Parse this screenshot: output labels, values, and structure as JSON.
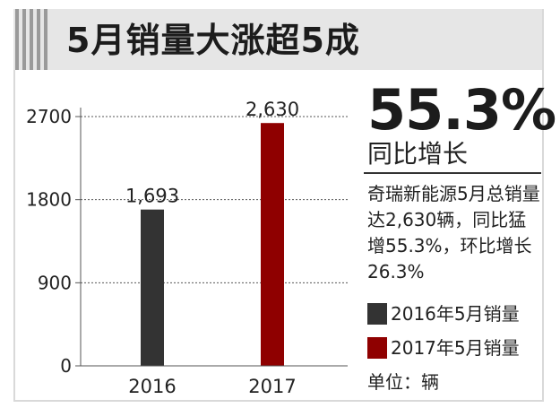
{
  "title": "5月销量大涨超5成",
  "highlight": {
    "value": "55.3%",
    "label": "同比增长"
  },
  "description": "奇瑞新能源5月总销量达2,630辆，同比猛增55.3%，环比增长26.3%",
  "unit": "单位：辆",
  "colors": {
    "2016": "#333333",
    "2017": "#8f0000"
  },
  "chart_data": {
    "type": "bar",
    "categories": [
      "2016",
      "2017"
    ],
    "values": [
      1693,
      2630
    ],
    "value_labels": [
      "1,693",
      "2,630"
    ],
    "yticks": [
      "0",
      "900",
      "1800",
      "2700"
    ],
    "ylim": [
      0,
      2700
    ],
    "grid": true,
    "legend": [
      "2016年5月销量",
      "2017年5月销量"
    ],
    "legend_placement": "right",
    "xlabel": "",
    "ylabel": "",
    "title": ""
  }
}
